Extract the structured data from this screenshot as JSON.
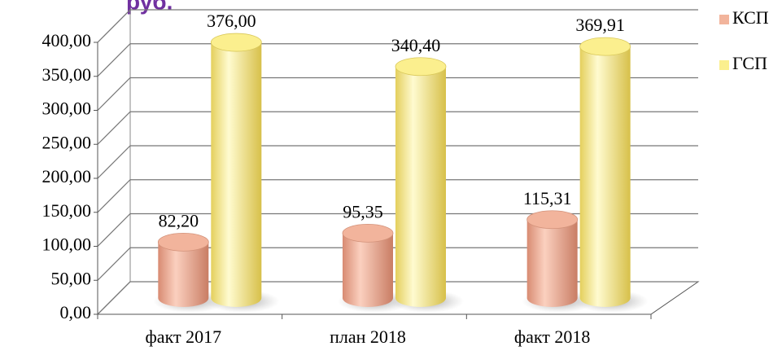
{
  "chart_data": {
    "type": "bar",
    "title": "руб.",
    "categories": [
      "факт 2017",
      "план 2018",
      "факт 2018"
    ],
    "series": [
      {
        "name": "КСП",
        "color": "#f2b49c",
        "values": [
          82.2,
          95.35,
          115.31
        ],
        "value_labels": [
          "82,20",
          "95,35",
          "115,31"
        ]
      },
      {
        "name": "ГСП",
        "color": "#fbef8e",
        "values": [
          376.0,
          340.4,
          369.91
        ],
        "value_labels": [
          "376,00",
          "340,40",
          "369,91"
        ]
      }
    ],
    "ylim": [
      0,
      400
    ],
    "yticks": [
      {
        "value": 0,
        "label": "0,00"
      },
      {
        "value": 50,
        "label": "50,00"
      },
      {
        "value": 100,
        "label": "100,00"
      },
      {
        "value": 150,
        "label": "150,00"
      },
      {
        "value": 200,
        "label": "200,00"
      },
      {
        "value": 250,
        "label": "250,00"
      },
      {
        "value": 300,
        "label": "300,00"
      },
      {
        "value": 350,
        "label": "350,00"
      },
      {
        "value": 400,
        "label": "400,00"
      }
    ],
    "grid": true,
    "legend": "right"
  }
}
